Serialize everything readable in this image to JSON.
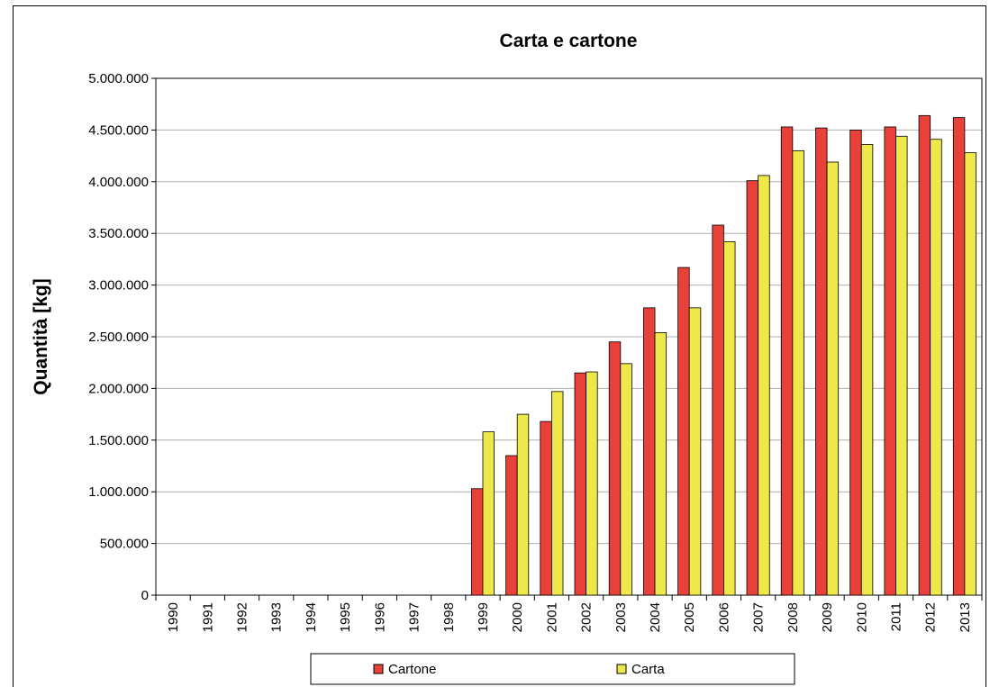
{
  "chart_data": {
    "type": "bar",
    "title": "Carta e cartone",
    "y_label": "Quantità [kg]",
    "categories": [
      "1990",
      "1991",
      "1992",
      "1993",
      "1994",
      "1995",
      "1996",
      "1997",
      "1998",
      "1999",
      "2000",
      "2001",
      "2002",
      "2003",
      "2004",
      "2005",
      "2006",
      "2007",
      "2008",
      "2009",
      "2010",
      "2011",
      "2012",
      "2013"
    ],
    "series": [
      {
        "name": "Cartone",
        "color": "#e8413a",
        "values": [
          0,
          0,
          0,
          0,
          0,
          0,
          0,
          0,
          0,
          1030000,
          1350000,
          1680000,
          2150000,
          2450000,
          2780000,
          3170000,
          3580000,
          4010000,
          4530000,
          4520000,
          4500000,
          4530000,
          4640000,
          4620000
        ]
      },
      {
        "name": "Carta",
        "color": "#eee84a",
        "values": [
          0,
          0,
          0,
          0,
          0,
          0,
          0,
          0,
          0,
          1580000,
          1750000,
          1970000,
          2160000,
          2240000,
          2540000,
          2780000,
          3420000,
          4060000,
          4300000,
          4190000,
          4360000,
          4440000,
          4410000,
          4280000
        ]
      }
    ],
    "ylim": [
      0,
      5000000
    ],
    "yticks": [
      0,
      {
        "value": 500000,
        "label": "500.000"
      },
      {
        "value": 1000000,
        "label": "1.000.000"
      },
      {
        "value": 1500000,
        "label": "1.500.000"
      },
      {
        "value": 2000000,
        "label": "2.000.000"
      },
      {
        "value": 2500000,
        "label": "2.500.000"
      },
      {
        "value": 3000000,
        "label": "3.000.000"
      },
      {
        "value": 3500000,
        "label": "3.500.000"
      },
      {
        "value": 4000000,
        "label": "4.000.000"
      },
      {
        "value": 4500000,
        "label": "4.500.000"
      },
      {
        "value": 5000000,
        "label": "5.000.000"
      }
    ],
    "grid": true,
    "legend": "bottom"
  }
}
